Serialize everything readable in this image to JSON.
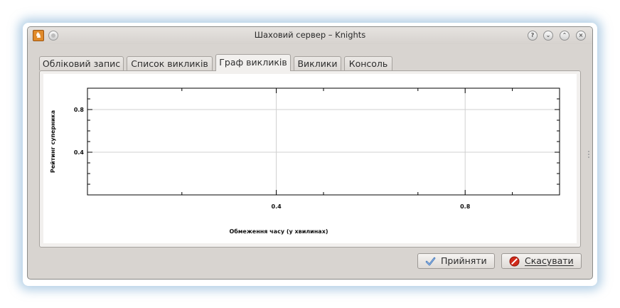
{
  "window": {
    "title": "Шаховий сервер – Knights",
    "app_icon_glyph": "♞",
    "buttons": {
      "help": "?",
      "minimize": "⌄",
      "maximize": "⌃",
      "close": "×"
    }
  },
  "tabs": [
    {
      "label": "Обліковий запис",
      "active": false
    },
    {
      "label": "Список викликів",
      "active": false
    },
    {
      "label": "Граф викликів",
      "active": true
    },
    {
      "label": "Виклики",
      "active": false
    },
    {
      "label": "Консоль",
      "active": false
    }
  ],
  "chart_data": {
    "type": "scatter",
    "xlabel": "Обмеження часу (у хвилинах)",
    "ylabel": "Рейтинг суперника",
    "xlim": [
      0.0,
      1.0
    ],
    "ylim": [
      0.0,
      1.0
    ],
    "xticks": [
      0.4,
      0.8
    ],
    "yticks": [
      0.4,
      0.8
    ],
    "xtick_labels": [
      "0.4",
      "0.8"
    ],
    "ytick_labels": [
      "0.4",
      "0.8"
    ],
    "grid": true,
    "points": []
  },
  "dialog_buttons": {
    "accept": "Прийняти",
    "cancel": "Скасувати"
  },
  "colors": {
    "window_bg": "#d8d4d0",
    "grid": "#d0d0d0",
    "accept_icon": "#3a6fb5",
    "cancel_icon": "#d12a1a"
  }
}
